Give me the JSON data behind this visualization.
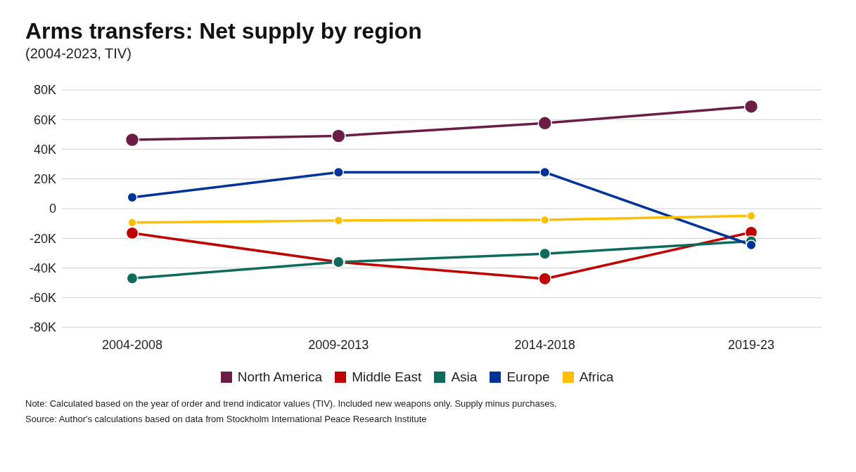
{
  "chart_data": {
    "type": "line",
    "title": "Arms transfers: Net supply by region",
    "subtitle": "(2004-2023, TIV)",
    "categories": [
      "2004-2008",
      "2009-2013",
      "2014-2018",
      "2019-23"
    ],
    "series": [
      {
        "name": "North America",
        "color": "#6b1d45",
        "values": [
          46400,
          49000,
          57600,
          68800
        ]
      },
      {
        "name": "Middle East",
        "color": "#c00000",
        "values": [
          -16500,
          -36000,
          -47300,
          -16000
        ]
      },
      {
        "name": "Asia",
        "color": "#0e6b5c",
        "values": [
          -47000,
          -36000,
          -30400,
          -22000
        ]
      },
      {
        "name": "Europe",
        "color": "#003399",
        "values": [
          7600,
          24500,
          24500,
          -24500
        ]
      },
      {
        "name": "Africa",
        "color": "#ffbf00",
        "values": [
          -9400,
          -8000,
          -7600,
          -4900
        ]
      }
    ],
    "ylim": [
      -80000,
      80000
    ],
    "yticks": [
      {
        "value": -80000,
        "label": "-80K"
      },
      {
        "value": -60000,
        "label": "-60K"
      },
      {
        "value": -40000,
        "label": "-40K"
      },
      {
        "value": -20000,
        "label": "-20K"
      },
      0,
      {
        "value": 20000,
        "label": "20K"
      },
      {
        "value": 40000,
        "label": "40K"
      },
      {
        "value": 60000,
        "label": "60K"
      },
      {
        "value": 80000,
        "label": "80K"
      }
    ],
    "grid": "y",
    "legend": "bottom",
    "marker": "circle",
    "line_style": "solid",
    "annotations": [
      "Note: Calculated based on the year of order and trend indicator values (TIV). Included new weapons only. Supply minus purchases.",
      "Source: Author's calculations based on data from Stockholm International Peace Research Institute"
    ]
  }
}
